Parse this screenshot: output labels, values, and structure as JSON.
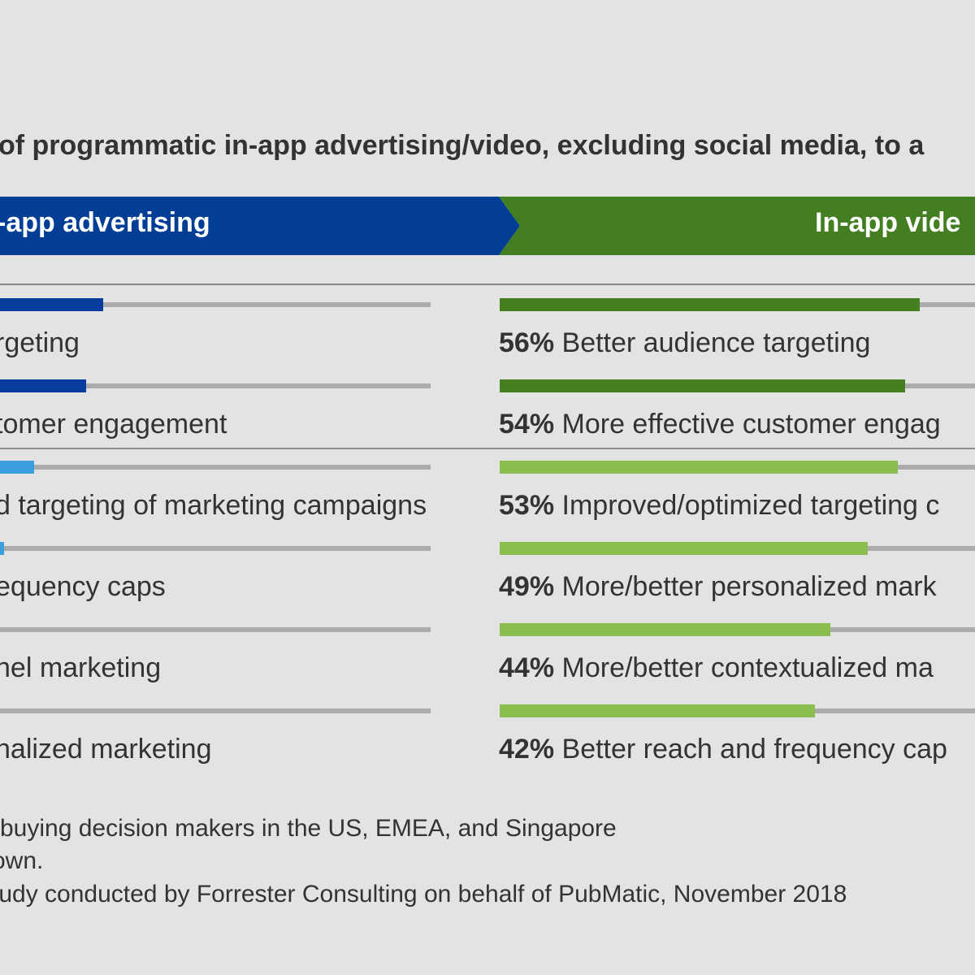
{
  "chart_data": {
    "type": "bar",
    "title": "of programmatic in-app advertising/video, excluding social media, to a",
    "colors": {
      "advertising_banner": "#023e96",
      "video_banner": "#437f20",
      "dark_blue_bar": "#0a3b9e",
      "light_blue_bar": "#3aa0dd",
      "dark_green_bar": "#44801f",
      "light_green_bar": "#8bbd4f",
      "track": "#ababab"
    },
    "panels": [
      {
        "name": "-app advertising",
        "rows": [
          {
            "label": "rgeting",
            "fill_to_edge": 0.24,
            "shade": "dark"
          },
          {
            "label": "tomer engagement",
            "fill_to_edge": 0.2,
            "shade": "dark"
          },
          {
            "label": "d targeting of marketing campaigns",
            "fill_to_edge": 0.08,
            "shade": "light"
          },
          {
            "label": "equency caps",
            "fill_to_edge": 0.01,
            "shade": "light"
          },
          {
            "label": "nel marketing",
            "fill_to_edge": 0,
            "shade": "light"
          },
          {
            "label": "nalized marketing",
            "fill_to_edge": 0,
            "shade": "light"
          }
        ]
      },
      {
        "name": "In-app vide",
        "rows": [
          {
            "pct_label": "56%",
            "value": 56,
            "label": "Better audience targeting",
            "shade": "dark"
          },
          {
            "pct_label": "54%",
            "value": 54,
            "label": "More effective customer engag",
            "shade": "dark"
          },
          {
            "pct_label": "53%",
            "value": 53,
            "label": "Improved/optimized targeting c",
            "shade": "light"
          },
          {
            "pct_label": "49%",
            "value": 49,
            "label": "More/better personalized mark",
            "shade": "light"
          },
          {
            "pct_label": "44%",
            "value": 44,
            "label": "More/better contextualized ma",
            "shade": "light"
          },
          {
            "pct_label": "42%",
            "value": 42,
            "label": "Better reach and frequency cap",
            "shade": "light"
          }
        ]
      }
    ]
  },
  "notes": [
    "-buying decision makers in the US, EMEA, and Singapore",
    "own.",
    "tudy conducted by Forrester Consulting on behalf of PubMatic, November 2018"
  ]
}
